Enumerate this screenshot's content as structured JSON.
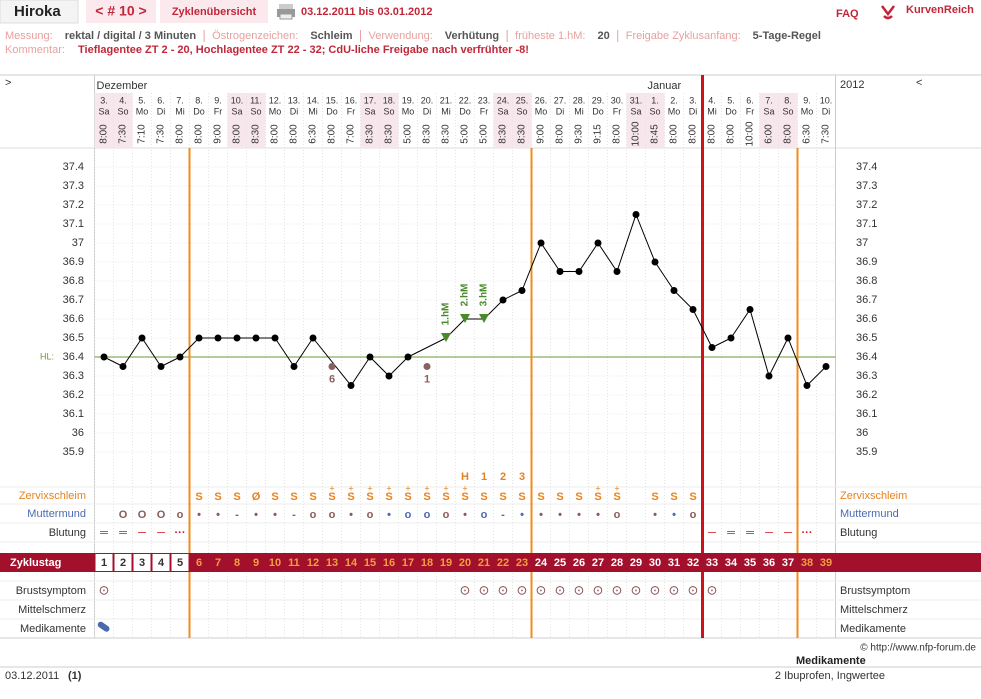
{
  "header": {
    "user": "Hiroka",
    "cycle_nav": "< # 10 >",
    "overview_tab": "Zyklenübersicht",
    "date_range": "03.12.2011 bis 03.01.2012",
    "faq": "FAQ",
    "brand": "KurvenReich"
  },
  "info": {
    "items": [
      {
        "label": "Messung:",
        "value": "rektal / digital / 3 Minuten"
      },
      {
        "label": "Östrogenzeichen:",
        "value": "Schleim"
      },
      {
        "label": "Verwendung:",
        "value": "Verhütung"
      },
      {
        "label": "früheste 1.hM:",
        "value": "20"
      },
      {
        "label": "Freigabe Zyklusanfang:",
        "value": "5-Tage-Regel"
      }
    ],
    "comment_label": "Kommentar:",
    "comment": "Tieflagentee ZT 2 - 20, Hochlagentee ZT 22 - 32; CdU-liche Freigabe nach verfrühter -8!"
  },
  "chart_data": {
    "type": "line",
    "left_toggle": ">",
    "right_toggle": "<",
    "year": "2012",
    "months": [
      "Dezember",
      null,
      null,
      null,
      null,
      null,
      null,
      null,
      null,
      null,
      null,
      null,
      null,
      null,
      null,
      null,
      null,
      null,
      null,
      null,
      null,
      null,
      null,
      null,
      null,
      null,
      null,
      null,
      null,
      "Januar",
      null,
      null,
      null,
      null,
      null,
      null,
      null,
      null,
      null
    ],
    "days": [
      "3.",
      "4.",
      "5.",
      "6.",
      "7.",
      "8.",
      "9.",
      "10.",
      "11.",
      "12.",
      "13.",
      "14.",
      "15.",
      "16.",
      "17.",
      "18.",
      "19.",
      "20.",
      "21.",
      "22.",
      "23.",
      "24.",
      "25.",
      "26.",
      "27.",
      "28.",
      "29.",
      "30.",
      "31.",
      "1.",
      "2.",
      "3.",
      "4.",
      "5.",
      "6.",
      "7.",
      "8.",
      "9.",
      "10."
    ],
    "weekdays": [
      "Sa",
      "So",
      "Mo",
      "Di",
      "Mi",
      "Do",
      "Fr",
      "Sa",
      "So",
      "Mo",
      "Di",
      "Mi",
      "Do",
      "Fr",
      "Sa",
      "So",
      "Mo",
      "Di",
      "Mi",
      "Do",
      "Fr",
      "Sa",
      "So",
      "Mo",
      "Di",
      "Mi",
      "Do",
      "Fr",
      "Sa",
      "So",
      "Mo",
      "Di",
      "Mi",
      "Do",
      "Fr",
      "Sa",
      "So",
      "Mo",
      "Di"
    ],
    "times": [
      "8:00",
      "7:30",
      "7:10",
      "7:30",
      "8:00",
      "8:00",
      "9:00",
      "8:00",
      "8:30",
      "8:00",
      "8:00",
      "6:30",
      "8:00",
      "7:00",
      "8:30",
      "8:30",
      "5:00",
      "8:30",
      "8:30",
      "5:00",
      "5:00",
      "8:30",
      "8:30",
      "9:00",
      "8:00",
      "9:30",
      "9:15",
      "8:00",
      "10:00",
      "8:45",
      "8:00",
      "8:00",
      "8:00",
      "8:00",
      "10:00",
      "6:00",
      "8:00",
      "6:30",
      "7:30"
    ],
    "values": [
      36.4,
      36.35,
      36.5,
      36.35,
      36.4,
      36.5,
      36.5,
      36.5,
      36.5,
      36.5,
      36.35,
      36.5,
      null,
      36.25,
      36.4,
      36.3,
      36.4,
      null,
      36.5,
      36.6,
      36.6,
      36.7,
      36.75,
      37.0,
      36.85,
      36.85,
      37.0,
      36.85,
      37.15,
      36.9,
      36.75,
      36.65,
      36.45,
      36.5,
      36.65,
      36.3,
      36.5,
      36.25,
      36.35
    ],
    "excluded": [
      null,
      null,
      null,
      null,
      null,
      null,
      null,
      null,
      null,
      null,
      null,
      null,
      36.35,
      null,
      null,
      null,
      null,
      36.35,
      null,
      null,
      null,
      null,
      null,
      null,
      null,
      null,
      null,
      null,
      null,
      null,
      null,
      null,
      null,
      null,
      null,
      null,
      null,
      null,
      null
    ],
    "excluded_labels": [
      null,
      null,
      null,
      null,
      null,
      null,
      null,
      null,
      null,
      null,
      null,
      null,
      "6",
      null,
      null,
      null,
      null,
      "1",
      null,
      null,
      null,
      null,
      null,
      null,
      null,
      null,
      null,
      null,
      null,
      null,
      null,
      null,
      null,
      null,
      null,
      null,
      null,
      null,
      null
    ],
    "hm_markers": [
      null,
      null,
      null,
      null,
      null,
      null,
      null,
      null,
      null,
      null,
      null,
      null,
      null,
      null,
      null,
      null,
      null,
      null,
      "1.hM",
      "2.hM",
      "3.hM",
      null,
      null,
      null,
      null,
      null,
      null,
      null,
      null,
      null,
      null,
      null,
      null,
      null,
      null,
      null,
      null,
      null,
      null
    ],
    "color": "#000000",
    "hm_color": "#4a8a2a",
    "excluded_color": "#8a6060",
    "ylim": [
      35.8,
      37.5
    ],
    "yticks": [
      35.9,
      36,
      36.1,
      36.2,
      36.3,
      36.4,
      36.5,
      36.6,
      36.7,
      36.8,
      36.9,
      37,
      37.1,
      37.2,
      37.3,
      37.4
    ],
    "grid": true,
    "coverline": 36.4,
    "coverline_label": "HL:",
    "coverline_color": "#6a9a3a",
    "row_labels": {
      "mucus": "Zervixschleim",
      "cervix": "Muttermund",
      "bleeding": "Blutung",
      "cycle_day": "Zyklustag",
      "breast": "Brustsymptom",
      "pain": "Mittelschmerz",
      "medication": "Medikamente"
    },
    "mucus_count": [
      null,
      null,
      null,
      null,
      null,
      null,
      null,
      null,
      null,
      null,
      null,
      null,
      null,
      null,
      null,
      null,
      null,
      null,
      null,
      "H",
      "1",
      "2",
      "3",
      null,
      null,
      null,
      null,
      null,
      null,
      null,
      null,
      null,
      null,
      null,
      null,
      null,
      null,
      null,
      null
    ],
    "mucus": [
      null,
      null,
      null,
      null,
      null,
      "S",
      "S",
      "S",
      "Ø",
      "S",
      "S",
      "S",
      "S",
      "S",
      "S",
      "S",
      "S",
      "S",
      "S",
      "S",
      "S",
      "S",
      "S",
      "S",
      "S",
      "S",
      "S",
      "S",
      null,
      "S",
      "S",
      "S",
      null,
      null,
      null,
      null,
      null,
      null,
      null
    ],
    "mucus_plus": [
      null,
      null,
      null,
      null,
      null,
      null,
      null,
      null,
      null,
      null,
      null,
      null,
      "+",
      "+",
      "+",
      "+",
      "+",
      "+",
      "+",
      "+",
      null,
      null,
      null,
      null,
      null,
      null,
      "+",
      "+",
      null,
      null,
      null,
      null,
      null,
      null,
      null,
      null,
      null,
      null,
      null
    ],
    "cervix": [
      null,
      "O",
      "O",
      "O",
      "o",
      "•",
      "•",
      "-",
      "•",
      "•",
      "-",
      "o",
      "o",
      "•",
      "o",
      "•",
      "o",
      "o",
      "o",
      "•",
      "o",
      "-",
      "•",
      "•",
      "•",
      "•",
      "•",
      "o",
      null,
      "•",
      "•",
      "o",
      null,
      null,
      null,
      null,
      null,
      null,
      null
    ],
    "cervix_colors": [
      null,
      "#8a5a5a",
      "#8a5a5a",
      "#8a5a5a",
      "#8a5a5a",
      "#8a5a5a",
      "#8a5a5a",
      "#8a5a5a",
      "#8a5a5a",
      "#8a5a5a",
      "#8a5a5a",
      "#8a5a5a",
      "#8a5a5a",
      "#8a5a5a",
      "#8a5a5a",
      "#4a6ab0",
      "#4a6ab0",
      "#4a6ab0",
      "#8a5a5a",
      "#8a5a5a",
      "#4a6ab0",
      "#8a5a5a",
      "#4a6ab0",
      "#8a5a5a",
      "#8a5a5a",
      "#8a5a5a",
      "#8a5a5a",
      "#8a5a5a",
      null,
      "#8a5a5a",
      "#4a6ab0",
      "#8a5a5a",
      null,
      null,
      null,
      null,
      null,
      null,
      null
    ],
    "bleeding": [
      "═",
      "═",
      "─",
      "─",
      "···",
      null,
      null,
      null,
      null,
      null,
      null,
      null,
      null,
      null,
      null,
      null,
      null,
      null,
      null,
      null,
      null,
      null,
      null,
      null,
      null,
      null,
      null,
      null,
      null,
      null,
      null,
      null,
      "─",
      "═",
      "═",
      "─",
      "─",
      "···",
      null
    ],
    "cycle_days": [
      1,
      2,
      3,
      4,
      5,
      6,
      7,
      8,
      9,
      10,
      11,
      12,
      13,
      14,
      15,
      16,
      17,
      18,
      19,
      20,
      21,
      22,
      23,
      24,
      25,
      26,
      27,
      28,
      29,
      30,
      31,
      32,
      33,
      34,
      35,
      36,
      37,
      38,
      39
    ],
    "breast": [
      "⊙",
      null,
      null,
      null,
      null,
      null,
      null,
      null,
      null,
      null,
      null,
      null,
      null,
      null,
      null,
      null,
      null,
      null,
      null,
      "⊙",
      "⊙",
      "⊙",
      "⊙",
      "⊙",
      "⊙",
      "⊙",
      "⊙",
      "⊙",
      "⊙",
      "⊙",
      "⊙",
      "⊙",
      "⊙",
      null,
      null,
      null,
      null,
      null,
      null
    ]
  },
  "footer": {
    "copyright": "© http://www.nfp-forum.de",
    "notes_title": "Medikamente",
    "date": "03.12.2011",
    "count": "(1)",
    "note": "2 Ibuprofen, Ingwertee"
  }
}
